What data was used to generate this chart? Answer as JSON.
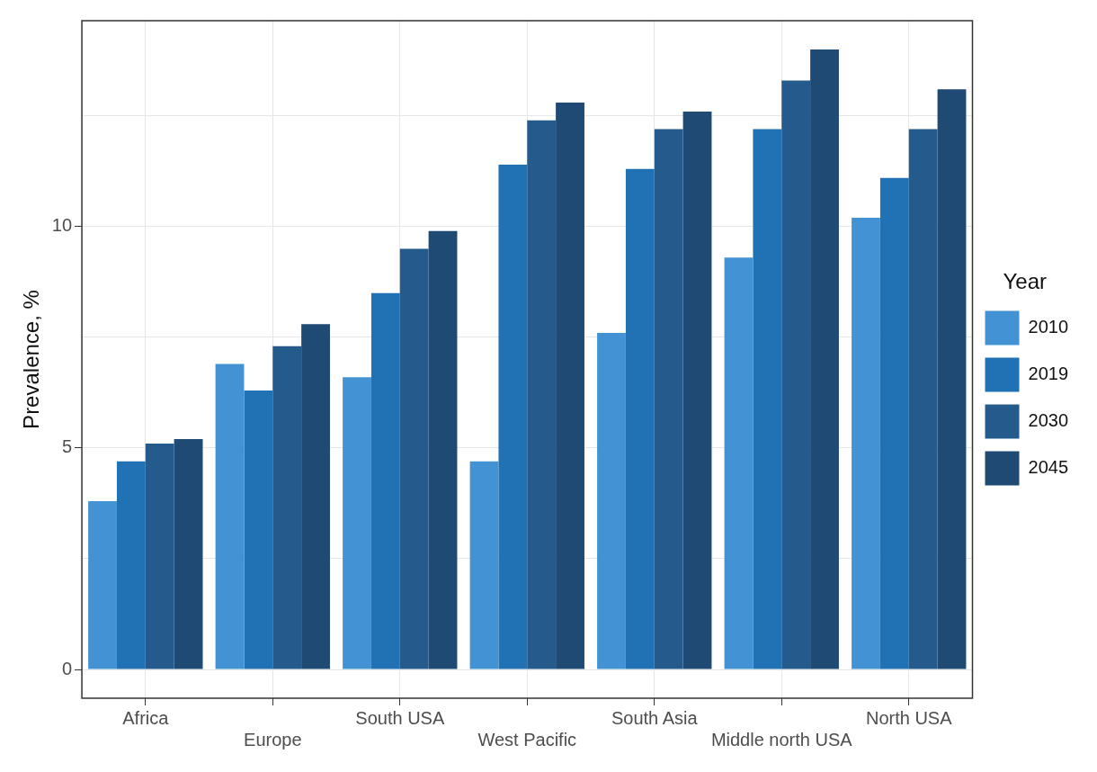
{
  "chart_data": {
    "type": "bar",
    "ylabel": "Prevalence, %",
    "legend_title": "Year",
    "legend": "right",
    "grid": true,
    "categories": [
      "Africa",
      "Europe",
      "South USA",
      "West Pacific",
      "South Asia",
      "Middle north USA",
      "North USA"
    ],
    "series": [
      {
        "name": "2010",
        "color": "#4292d4",
        "values": [
          3.8,
          6.9,
          6.6,
          4.7,
          7.6,
          9.3,
          10.2
        ]
      },
      {
        "name": "2019",
        "color": "#2171b5",
        "values": [
          4.7,
          6.3,
          8.5,
          11.4,
          11.3,
          12.2,
          11.1
        ]
      },
      {
        "name": "2030",
        "color": "#245a8c",
        "values": [
          5.1,
          7.3,
          9.5,
          12.4,
          12.2,
          13.3,
          12.2
        ]
      },
      {
        "name": "2045",
        "color": "#1f4a73",
        "values": [
          5.2,
          7.8,
          9.9,
          12.8,
          12.6,
          14.0,
          13.1
        ]
      }
    ],
    "ylim": [
      -0.65,
      14.65
    ],
    "yticks": [
      0,
      {
        "value": 2.5,
        "label": null
      },
      5,
      {
        "value": 7.5,
        "label": null
      },
      10,
      {
        "value": 12.5,
        "label": null
      }
    ]
  }
}
